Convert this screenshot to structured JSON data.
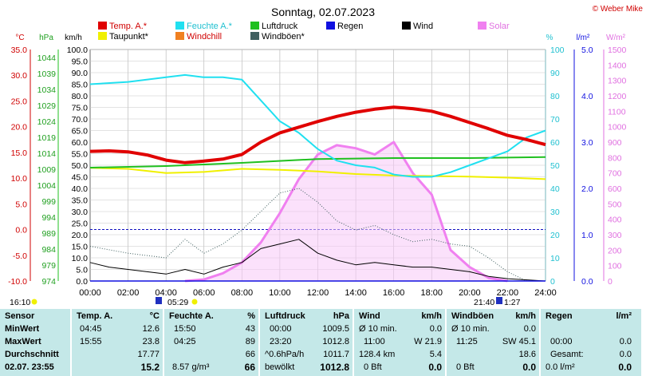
{
  "title": "Sonntag, 02.07.2023",
  "copyright": "© Weber Mike",
  "legend": [
    {
      "label": "Temp. A.*",
      "color": "#e00000"
    },
    {
      "label": "Feuchte A.*",
      "color": "#20e0f0"
    },
    {
      "label": "Luftdruck",
      "color": "#20c020"
    },
    {
      "label": "Regen",
      "color": "#1010e0"
    },
    {
      "label": "Wind",
      "color": "#000000"
    },
    {
      "label": "Solar",
      "color": "#f080f0"
    },
    {
      "label": "Taupunkt*",
      "color": "#f0f000"
    },
    {
      "label": "Windchill",
      "color": "#f08020"
    },
    {
      "label": "Windböen*",
      "color": "#406060"
    }
  ],
  "axes": {
    "temp": {
      "unit": "°C",
      "ticks": [
        "35.0",
        "30.0",
        "25.0",
        "20.0",
        "15.0",
        "10.0",
        "5.0",
        "0.0",
        "-5.0",
        "-10.0"
      ],
      "color": "#e00000"
    },
    "press": {
      "unit": "hPa",
      "ticks": [
        "1044",
        "1039",
        "1034",
        "1029",
        "1024",
        "1019",
        "1014",
        "1009",
        "1004",
        "999",
        "994",
        "989",
        "984",
        "979",
        "974"
      ],
      "color": "#20c020"
    },
    "wind": {
      "unit": "km/h",
      "ticks": [
        "100.0",
        "95.0",
        "90.0",
        "85.0",
        "80.0",
        "75.0",
        "70.0",
        "65.0",
        "60.0",
        "55.0",
        "50.0",
        "45.0",
        "40.0",
        "35.0",
        "30.0",
        "25.0",
        "20.0",
        "15.0",
        "10.0",
        "5.0",
        "0.0"
      ],
      "color": "#000000"
    },
    "hum": {
      "unit": "%",
      "ticks": [
        "100",
        "90",
        "80",
        "70",
        "60",
        "50",
        "40",
        "30",
        "20",
        "10",
        "0"
      ],
      "color": "#20e0f0"
    },
    "rain": {
      "unit": "l/m²",
      "ticks": [
        "5.0",
        "4.0",
        "3.0",
        "2.0",
        "1.0",
        "0.0"
      ],
      "color": "#1010e0"
    },
    "solar": {
      "unit": "W/m²",
      "ticks": [
        "1500",
        "1400",
        "1300",
        "1200",
        "1100",
        "1000",
        "900",
        "800",
        "700",
        "600",
        "500",
        "400",
        "300",
        "200",
        "100",
        "0"
      ],
      "color": "#f080f0"
    },
    "x": {
      "ticks": [
        "00:00",
        "02:00",
        "04:00",
        "06:00",
        "08:00",
        "10:00",
        "12:00",
        "14:00",
        "16:00",
        "18:00",
        "20:00",
        "22:00",
        "24:00"
      ]
    }
  },
  "sun": {
    "sunrise": "05:29",
    "sunset": "21:40",
    "moonset": "16:10",
    "moonrise": "1:27"
  },
  "chart_data": {
    "type": "line",
    "x_unit": "hour of day",
    "temperature_c": [
      [
        0,
        15.2
      ],
      [
        1,
        15.3
      ],
      [
        2,
        15.1
      ],
      [
        3,
        14.5
      ],
      [
        4,
        13.5
      ],
      [
        5,
        13.0
      ],
      [
        6,
        13.3
      ],
      [
        7,
        13.7
      ],
      [
        8,
        14.6
      ],
      [
        9,
        17.0
      ],
      [
        10,
        18.8
      ],
      [
        11,
        19.9
      ],
      [
        12,
        21.0
      ],
      [
        13,
        22.0
      ],
      [
        14,
        22.8
      ],
      [
        15,
        23.4
      ],
      [
        16,
        23.8
      ],
      [
        17,
        23.5
      ],
      [
        18,
        23.0
      ],
      [
        19,
        22.0
      ],
      [
        20,
        20.8
      ],
      [
        21,
        19.6
      ],
      [
        22,
        18.3
      ],
      [
        23,
        17.5
      ],
      [
        24,
        16.5
      ]
    ],
    "dewpoint_c": [
      [
        0,
        12.0
      ],
      [
        2,
        11.8
      ],
      [
        4,
        11.0
      ],
      [
        6,
        11.2
      ],
      [
        8,
        11.8
      ],
      [
        10,
        11.6
      ],
      [
        12,
        11.3
      ],
      [
        14,
        10.8
      ],
      [
        16,
        10.5
      ],
      [
        18,
        10.4
      ],
      [
        20,
        10.3
      ],
      [
        22,
        10.1
      ],
      [
        24,
        9.8
      ]
    ],
    "humidity_pct": [
      [
        0,
        85
      ],
      [
        2,
        86
      ],
      [
        4,
        88
      ],
      [
        5,
        89
      ],
      [
        6,
        88
      ],
      [
        7,
        88
      ],
      [
        8,
        87
      ],
      [
        9,
        78
      ],
      [
        10,
        69
      ],
      [
        11,
        64
      ],
      [
        12,
        57
      ],
      [
        13,
        52
      ],
      [
        14,
        50
      ],
      [
        15,
        49
      ],
      [
        16,
        46
      ],
      [
        17,
        45
      ],
      [
        18,
        45
      ],
      [
        19,
        47
      ],
      [
        20,
        50
      ],
      [
        21,
        53
      ],
      [
        22,
        56
      ],
      [
        23,
        62
      ],
      [
        24,
        65
      ]
    ],
    "pressure_hpa": [
      [
        0,
        1009.5
      ],
      [
        4,
        1010.0
      ],
      [
        8,
        1011.0
      ],
      [
        12,
        1012.2
      ],
      [
        16,
        1012.5
      ],
      [
        20,
        1012.5
      ],
      [
        24,
        1012.8
      ]
    ],
    "wind_kmh": [
      [
        0,
        8
      ],
      [
        1,
        6
      ],
      [
        2,
        5
      ],
      [
        3,
        4
      ],
      [
        4,
        3
      ],
      [
        5,
        5
      ],
      [
        6,
        3
      ],
      [
        7,
        6
      ],
      [
        8,
        8
      ],
      [
        9,
        14
      ],
      [
        10,
        16
      ],
      [
        11,
        18
      ],
      [
        12,
        12
      ],
      [
        13,
        9
      ],
      [
        14,
        7
      ],
      [
        15,
        8
      ],
      [
        16,
        7
      ],
      [
        17,
        6
      ],
      [
        18,
        6
      ],
      [
        19,
        5
      ],
      [
        20,
        4
      ],
      [
        21,
        2
      ],
      [
        22,
        1
      ],
      [
        24,
        0
      ]
    ],
    "gusts_kmh": [
      [
        0,
        15
      ],
      [
        2,
        12
      ],
      [
        4,
        10
      ],
      [
        5,
        18
      ],
      [
        6,
        12
      ],
      [
        7,
        16
      ],
      [
        8,
        22
      ],
      [
        9,
        30
      ],
      [
        10,
        38
      ],
      [
        11,
        40
      ],
      [
        12,
        34
      ],
      [
        13,
        26
      ],
      [
        14,
        22
      ],
      [
        15,
        24
      ],
      [
        16,
        20
      ],
      [
        17,
        17
      ],
      [
        18,
        18
      ],
      [
        19,
        16
      ],
      [
        20,
        15
      ],
      [
        21,
        10
      ],
      [
        22,
        4
      ],
      [
        23,
        0
      ]
    ],
    "solar_wm2": [
      [
        5,
        0
      ],
      [
        6,
        10
      ],
      [
        7,
        50
      ],
      [
        8,
        120
      ],
      [
        9,
        250
      ],
      [
        10,
        440
      ],
      [
        11,
        660
      ],
      [
        12,
        820
      ],
      [
        13,
        880
      ],
      [
        14,
        860
      ],
      [
        15,
        820
      ],
      [
        16,
        900
      ],
      [
        17,
        700
      ],
      [
        18,
        560
      ],
      [
        19,
        200
      ],
      [
        20,
        90
      ],
      [
        21,
        20
      ],
      [
        22,
        0
      ]
    ],
    "rain_lm2": [
      [
        0,
        0
      ],
      [
        24,
        0
      ]
    ]
  },
  "table": {
    "headers": {
      "sensor": "Sensor",
      "temp": "Temp. A.",
      "temp_u": "°C",
      "hum": "Feuchte A.",
      "hum_u": "%",
      "press": "Luftdruck",
      "press_u": "hPa",
      "wind": "Wind",
      "wind_u": "km/h",
      "gust": "Windböen",
      "gust_u": "km/h",
      "rain": "Regen",
      "rain_u": "l/m²"
    },
    "rows": [
      {
        "label": "MinWert",
        "t_time": "04:45",
        "t_val": "12.6",
        "h_time": "15:50",
        "h_val": "43",
        "p_time": "00:00",
        "p_val": "1009.5",
        "w_a": "Ø 10 min.",
        "w_b": "",
        "w_val": "0.0",
        "g_a": "Ø 10 min.",
        "g_b": "",
        "g_val": "0.0",
        "r_a": "",
        "r_val": ""
      },
      {
        "label": "MaxWert",
        "t_time": "15:55",
        "t_val": "23.8",
        "h_time": "04:25",
        "h_val": "89",
        "p_time": "23:20",
        "p_val": "1012.8",
        "w_a": "11:00",
        "w_b": "W 21.9",
        "w_val": "",
        "g_a": "11:25",
        "g_b": "SW 45.1",
        "g_val": "",
        "r_a": "00:00",
        "r_val": "0.0"
      },
      {
        "label": "Durchschnitt",
        "t_time": "",
        "t_val": "17.77",
        "h_time": "",
        "h_val": "66",
        "p_time": "^0.6hPa/h",
        "p_val": "1011.7",
        "w_a": "128.4 km",
        "w_b": "",
        "w_val": "5.4",
        "g_a": "",
        "g_b": "",
        "g_val": "18.6",
        "r_a": "Gesamt:",
        "r_val": "0.0"
      },
      {
        "label": "02.07. 23:55",
        "t_time": "",
        "t_val": "15.2",
        "h_time": "8.57 g/m³",
        "h_val": "66",
        "p_time": "bewölkt",
        "p_val": "1012.8",
        "w_a": "0 Bft",
        "w_b": "",
        "w_val": "0.0",
        "g_a": "0 Bft",
        "g_b": "",
        "g_val": "0.0",
        "r_a": "0.0 l/m²",
        "r_val": "0.0"
      }
    ]
  }
}
